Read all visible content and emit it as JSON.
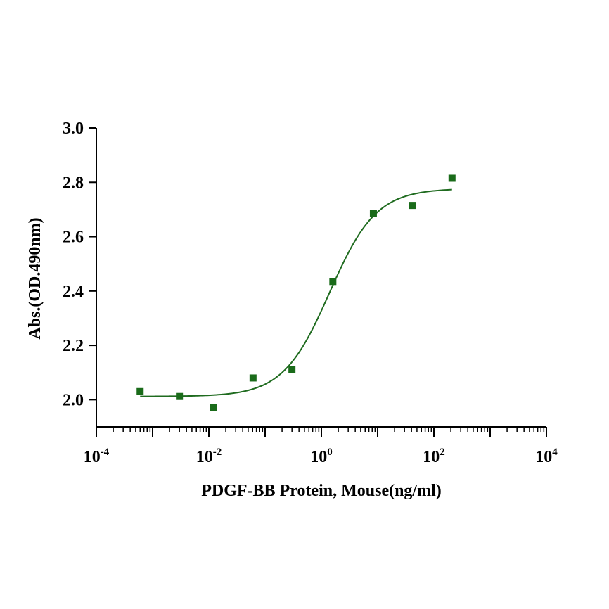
{
  "chart_data": {
    "type": "scatter",
    "title": "",
    "xlabel": "PDGF-BB Protein, Mouse(ng/ml)",
    "ylabel": "Abs.(OD.490nm)",
    "x_scale": "log10",
    "xlim": [
      0.0001,
      10000
    ],
    "ylim": [
      1.9,
      3.0
    ],
    "x_ticks": [
      {
        "base": "10",
        "exp": "-4",
        "value": 0.0001
      },
      {
        "base": "10",
        "exp": "-2",
        "value": 0.01
      },
      {
        "base": "10",
        "exp": "0",
        "value": 1
      },
      {
        "base": "10",
        "exp": "2",
        "value": 100
      },
      {
        "base": "10",
        "exp": "4",
        "value": 10000
      }
    ],
    "y_ticks": [
      "2.0",
      "2.2",
      "2.4",
      "2.6",
      "2.8",
      "3.0"
    ],
    "grid": false,
    "legend": "none",
    "colors": {
      "series": "#1a6b1a",
      "curve": "#1f6b1f",
      "axis": "#000000"
    },
    "series": [
      {
        "marker": "square",
        "x": [
          0.0006,
          0.003,
          0.012,
          0.061,
          0.3,
          1.6,
          8.4,
          42,
          210
        ],
        "y": [
          2.03,
          2.012,
          1.97,
          2.08,
          2.11,
          2.435,
          2.685,
          2.715,
          2.815
        ]
      }
    ],
    "fit": {
      "model": "4PL",
      "bottom": 2.012,
      "top": 2.777,
      "ec50": 1.4,
      "hill": 1.05,
      "x_range": [
        0.0006,
        210
      ]
    }
  }
}
